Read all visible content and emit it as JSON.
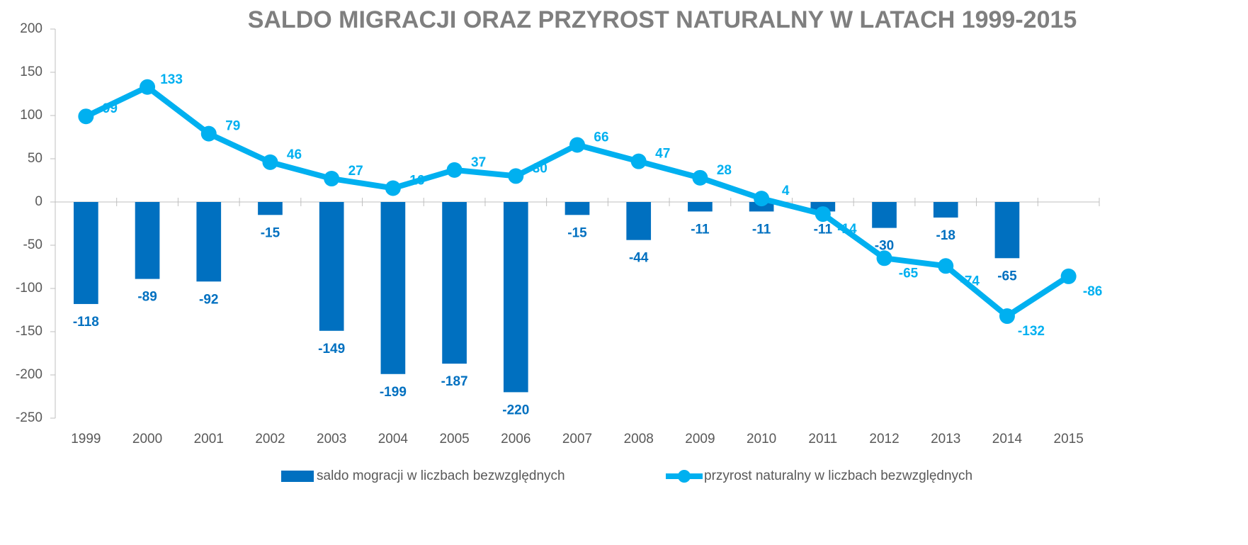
{
  "chart_data": {
    "type": "bar-line",
    "title": "SALDO MIGRACJI ORAZ PRZYROST NATURALNY W LATACH 1999-2015",
    "categories": [
      "1999",
      "2000",
      "2001",
      "2002",
      "2003",
      "2004",
      "2005",
      "2006",
      "2007",
      "2008",
      "2009",
      "2010",
      "2011",
      "2012",
      "2013",
      "2014",
      "2015"
    ],
    "series": [
      {
        "name": "saldo mogracji w liczbach bezwzględnych",
        "type": "bar",
        "color": "#0070c0",
        "values": [
          -118,
          -89,
          -92,
          -15,
          -149,
          -199,
          -187,
          -220,
          -15,
          -44,
          -11,
          -11,
          -11,
          -30,
          -18,
          -65,
          null
        ]
      },
      {
        "name": "przyrost naturalny w liczbach bezwzględnych",
        "type": "line",
        "color": "#00b0f0",
        "values": [
          99,
          133,
          79,
          46,
          27,
          16,
          37,
          30,
          66,
          47,
          28,
          4,
          -14,
          -65,
          -74,
          -132,
          -86
        ]
      }
    ],
    "ylim": [
      -250,
      200
    ],
    "yticks": [
      -250,
      -200,
      -150,
      -100,
      -50,
      0,
      50,
      100,
      150,
      200
    ],
    "grid": false,
    "legend": "bottom"
  }
}
